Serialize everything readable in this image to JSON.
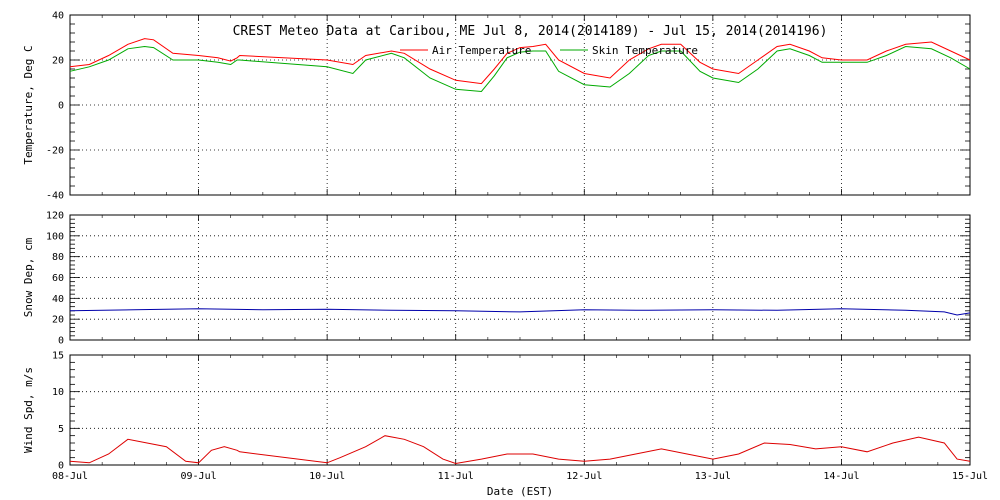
{
  "chart_data": {
    "type": "line",
    "title": "CREST Meteo Data at Caribou, ME   Jul  8, 2014(2014189) - Jul 15, 2014(2014196)",
    "xlabel": "Date (EST)",
    "x_ticks": [
      "08-Jul",
      "09-Jul",
      "10-Jul",
      "11-Jul",
      "12-Jul",
      "13-Jul",
      "14-Jul",
      "15-Jul"
    ],
    "xlim": [
      0,
      7
    ],
    "panels": [
      {
        "id": "temperature",
        "ylabel": "Temperature, Deg C",
        "ylim": [
          -40,
          40
        ],
        "yticks": [
          -40,
          -20,
          0,
          20,
          40
        ],
        "legend": "top-center",
        "series": [
          {
            "name": "Air Temperature",
            "color": "#ff0000",
            "points": [
              [
                0,
                17
              ],
              [
                0.15,
                18
              ],
              [
                0.3,
                22
              ],
              [
                0.45,
                27
              ],
              [
                0.58,
                29.5
              ],
              [
                0.65,
                29
              ],
              [
                0.8,
                23
              ],
              [
                1.0,
                22
              ],
              [
                1.15,
                21
              ],
              [
                1.25,
                19.5
              ],
              [
                1.3,
                21
              ],
              [
                1.32,
                22
              ],
              [
                2.0,
                20
              ],
              [
                2.2,
                18
              ],
              [
                2.3,
                22
              ],
              [
                2.5,
                24
              ],
              [
                2.6,
                23
              ],
              [
                2.8,
                16
              ],
              [
                3.0,
                11
              ],
              [
                3.2,
                9.5
              ],
              [
                3.3,
                16
              ],
              [
                3.4,
                23
              ],
              [
                3.5,
                25.5
              ],
              [
                3.6,
                26
              ],
              [
                3.7,
                27
              ],
              [
                3.8,
                20
              ],
              [
                4.0,
                14
              ],
              [
                4.2,
                12
              ],
              [
                4.35,
                20
              ],
              [
                4.5,
                25
              ],
              [
                4.6,
                27
              ],
              [
                4.75,
                27
              ],
              [
                4.9,
                19
              ],
              [
                5.0,
                16
              ],
              [
                5.2,
                14
              ],
              [
                5.35,
                20
              ],
              [
                5.5,
                26
              ],
              [
                5.6,
                27
              ],
              [
                5.75,
                24
              ],
              [
                5.85,
                21
              ],
              [
                6.0,
                20
              ],
              [
                6.2,
                20
              ],
              [
                6.35,
                24
              ],
              [
                6.5,
                27
              ],
              [
                6.7,
                28
              ],
              [
                6.85,
                24
              ],
              [
                7.0,
                20
              ]
            ]
          },
          {
            "name": "Skin Temperature",
            "color": "#00aa00",
            "points": [
              [
                0,
                15
              ],
              [
                0.15,
                17
              ],
              [
                0.3,
                20
              ],
              [
                0.45,
                25
              ],
              [
                0.58,
                26
              ],
              [
                0.65,
                25.5
              ],
              [
                0.8,
                20
              ],
              [
                1.0,
                20
              ],
              [
                1.15,
                19
              ],
              [
                1.25,
                18
              ],
              [
                1.3,
                20
              ],
              [
                1.32,
                20
              ],
              [
                2.0,
                17
              ],
              [
                2.2,
                14
              ],
              [
                2.3,
                20
              ],
              [
                2.5,
                23
              ],
              [
                2.6,
                21
              ],
              [
                2.8,
                12
              ],
              [
                3.0,
                7
              ],
              [
                3.2,
                6
              ],
              [
                3.3,
                13
              ],
              [
                3.4,
                21
              ],
              [
                3.5,
                23.5
              ],
              [
                3.6,
                24
              ],
              [
                3.7,
                24
              ],
              [
                3.8,
                15
              ],
              [
                4.0,
                9
              ],
              [
                4.2,
                8
              ],
              [
                4.35,
                14
              ],
              [
                4.5,
                22
              ],
              [
                4.6,
                24
              ],
              [
                4.75,
                24
              ],
              [
                4.9,
                15
              ],
              [
                5.0,
                12
              ],
              [
                5.2,
                10
              ],
              [
                5.35,
                16
              ],
              [
                5.5,
                24
              ],
              [
                5.6,
                25
              ],
              [
                5.75,
                22
              ],
              [
                5.85,
                19
              ],
              [
                6.0,
                19
              ],
              [
                6.2,
                19
              ],
              [
                6.35,
                22
              ],
              [
                6.5,
                26
              ],
              [
                6.7,
                25
              ],
              [
                6.85,
                21
              ],
              [
                7.0,
                16
              ]
            ]
          }
        ]
      },
      {
        "id": "snow",
        "ylabel": "Snow Dep, cm",
        "ylim": [
          0,
          120
        ],
        "yticks": [
          0,
          20,
          40,
          60,
          80,
          100,
          120
        ],
        "series": [
          {
            "name": "",
            "color": "#0000aa",
            "points": [
              [
                0,
                28
              ],
              [
                0.5,
                29
              ],
              [
                1.0,
                30
              ],
              [
                1.5,
                29
              ],
              [
                2.0,
                29.5
              ],
              [
                2.5,
                28.5
              ],
              [
                3.0,
                28
              ],
              [
                3.5,
                27
              ],
              [
                4.0,
                29
              ],
              [
                4.5,
                28.5
              ],
              [
                5.0,
                29
              ],
              [
                5.5,
                28.5
              ],
              [
                6.0,
                30
              ],
              [
                6.5,
                28.5
              ],
              [
                6.8,
                27
              ],
              [
                6.9,
                24
              ],
              [
                7.0,
                26
              ]
            ]
          }
        ]
      },
      {
        "id": "wind",
        "ylabel": "Wind Spd, m/s",
        "ylim": [
          0,
          15
        ],
        "yticks": [
          0,
          5,
          10,
          15
        ],
        "series": [
          {
            "name": "",
            "color": "#dd0000",
            "points": [
              [
                0,
                0.5
              ],
              [
                0.15,
                0.3
              ],
              [
                0.3,
                1.5
              ],
              [
                0.45,
                3.5
              ],
              [
                0.6,
                3.0
              ],
              [
                0.75,
                2.5
              ],
              [
                0.9,
                0.5
              ],
              [
                1.0,
                0.3
              ],
              [
                1.1,
                2.0
              ],
              [
                1.2,
                2.5
              ],
              [
                1.3,
                2.0
              ],
              [
                1.32,
                1.8
              ],
              [
                2.0,
                0.3
              ],
              [
                2.1,
                1.0
              ],
              [
                2.3,
                2.5
              ],
              [
                2.45,
                4.0
              ],
              [
                2.6,
                3.5
              ],
              [
                2.75,
                2.5
              ],
              [
                2.9,
                0.8
              ],
              [
                3.0,
                0.2
              ],
              [
                3.2,
                0.8
              ],
              [
                3.4,
                1.5
              ],
              [
                3.6,
                1.5
              ],
              [
                3.8,
                0.8
              ],
              [
                4.0,
                0.5
              ],
              [
                4.2,
                0.8
              ],
              [
                4.4,
                1.5
              ],
              [
                4.6,
                2.2
              ],
              [
                4.8,
                1.5
              ],
              [
                5.0,
                0.8
              ],
              [
                5.2,
                1.5
              ],
              [
                5.4,
                3.0
              ],
              [
                5.6,
                2.8
              ],
              [
                5.8,
                2.2
              ],
              [
                6.0,
                2.5
              ],
              [
                6.2,
                1.8
              ],
              [
                6.4,
                3.0
              ],
              [
                6.6,
                3.8
              ],
              [
                6.8,
                3.0
              ],
              [
                6.9,
                0.8
              ],
              [
                7.0,
                0.5
              ]
            ]
          }
        ]
      }
    ]
  }
}
